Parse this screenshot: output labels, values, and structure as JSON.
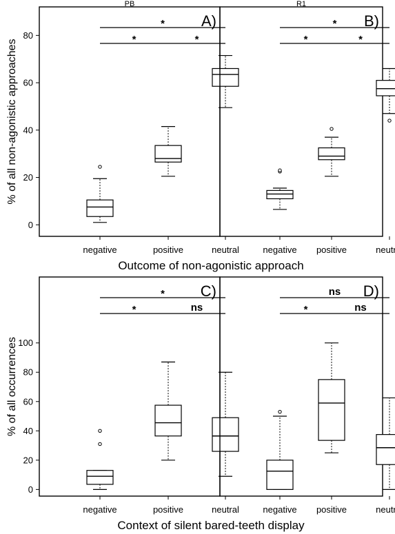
{
  "chart_data": [
    {
      "type": "box",
      "title": "PB",
      "panel_label": "A)",
      "xlabel": "Outcome of non-agonistic approach",
      "ylabel": "% of all non-agonistic approaches",
      "yticks": [
        "0",
        "20",
        "40",
        "60",
        "80"
      ],
      "ylim": [
        -4,
        90
      ],
      "categories": [
        "negative",
        "positive",
        "neutral"
      ],
      "boxes": [
        {
          "category": "negative",
          "whisker_low": 1,
          "q1": 3.5,
          "median": 7.5,
          "q3": 10.5,
          "whisker_high": 19.5,
          "outliers": [
            24.5
          ]
        },
        {
          "category": "positive",
          "whisker_low": 20.5,
          "q1": 26.5,
          "median": 28,
          "q3": 33.5,
          "whisker_high": 41.5,
          "outliers": []
        },
        {
          "category": "neutral",
          "whisker_low": 49.5,
          "q1": 58.5,
          "median": 63.5,
          "q3": 66,
          "whisker_high": 71.5,
          "outliers": []
        }
      ],
      "significance": [
        {
          "from": 0,
          "to": 2,
          "label": "*",
          "level": 2
        },
        {
          "from": 0,
          "to": 1,
          "label": "*",
          "level": 1
        },
        {
          "from": 1,
          "to": 2,
          "label": "*",
          "level": 1
        }
      ]
    },
    {
      "type": "box",
      "title": "R1",
      "panel_label": "B)",
      "ylim": [
        -4,
        90
      ],
      "categories": [
        "negative",
        "positive",
        "neutral"
      ],
      "boxes": [
        {
          "category": "negative",
          "whisker_low": 6.5,
          "q1": 11,
          "median": 13,
          "q3": 14.5,
          "whisker_high": 15.5,
          "outliers": [
            22.5,
            23
          ]
        },
        {
          "category": "positive",
          "whisker_low": 20.5,
          "q1": 27.5,
          "median": 29,
          "q3": 32.5,
          "whisker_high": 37,
          "outliers": [
            40.5
          ]
        },
        {
          "category": "neutral",
          "whisker_low": 47,
          "q1": 54.5,
          "median": 57.5,
          "q3": 61,
          "whisker_high": 66,
          "outliers": [
            44
          ]
        }
      ],
      "significance": [
        {
          "from": 0,
          "to": 2,
          "label": "*",
          "level": 2
        },
        {
          "from": 0,
          "to": 1,
          "label": "*",
          "level": 1
        },
        {
          "from": 1,
          "to": 2,
          "label": "*",
          "level": 1
        }
      ]
    },
    {
      "type": "box",
      "panel_label": "C)",
      "xlabel": "Context of silent bared-teeth display",
      "ylabel": "% of all occurrences",
      "yticks": [
        "0",
        "20",
        "40",
        "60",
        "80",
        "100"
      ],
      "ylim": [
        -5,
        145
      ],
      "categories": [
        "negative",
        "positive",
        "neutral"
      ],
      "boxes": [
        {
          "category": "negative",
          "whisker_low": 0,
          "q1": 3.5,
          "median": 9,
          "q3": 13,
          "whisker_high": 13,
          "outliers": [
            31,
            40
          ]
        },
        {
          "category": "positive",
          "whisker_low": 20,
          "q1": 36.5,
          "median": 45.5,
          "q3": 57.5,
          "whisker_high": 87,
          "outliers": []
        },
        {
          "category": "neutral",
          "whisker_low": 9,
          "q1": 26,
          "median": 36.5,
          "q3": 49,
          "whisker_high": 80,
          "outliers": []
        }
      ],
      "significance": [
        {
          "from": 0,
          "to": 2,
          "label": "*",
          "level": 2
        },
        {
          "from": 0,
          "to": 1,
          "label": "*",
          "level": 1
        },
        {
          "from": 1,
          "to": 2,
          "label": "ns",
          "level": 1
        }
      ]
    },
    {
      "type": "box",
      "panel_label": "D)",
      "ylim": [
        -5,
        145
      ],
      "categories": [
        "negative",
        "positive",
        "neutral"
      ],
      "boxes": [
        {
          "category": "negative",
          "whisker_low": 0,
          "q1": 0,
          "median": 12.5,
          "q3": 20,
          "whisker_high": 50,
          "outliers": [
            53
          ]
        },
        {
          "category": "positive",
          "whisker_low": 25,
          "q1": 33.5,
          "median": 59,
          "q3": 75,
          "whisker_high": 100,
          "outliers": []
        },
        {
          "category": "neutral",
          "whisker_low": 0,
          "q1": 17,
          "median": 28.5,
          "q3": 37.5,
          "whisker_high": 62.5,
          "outliers": []
        }
      ],
      "significance": [
        {
          "from": 0,
          "to": 2,
          "label": "ns",
          "level": 2
        },
        {
          "from": 0,
          "to": 1,
          "label": "*",
          "level": 1
        },
        {
          "from": 1,
          "to": 2,
          "label": "ns",
          "level": 1
        }
      ]
    }
  ]
}
